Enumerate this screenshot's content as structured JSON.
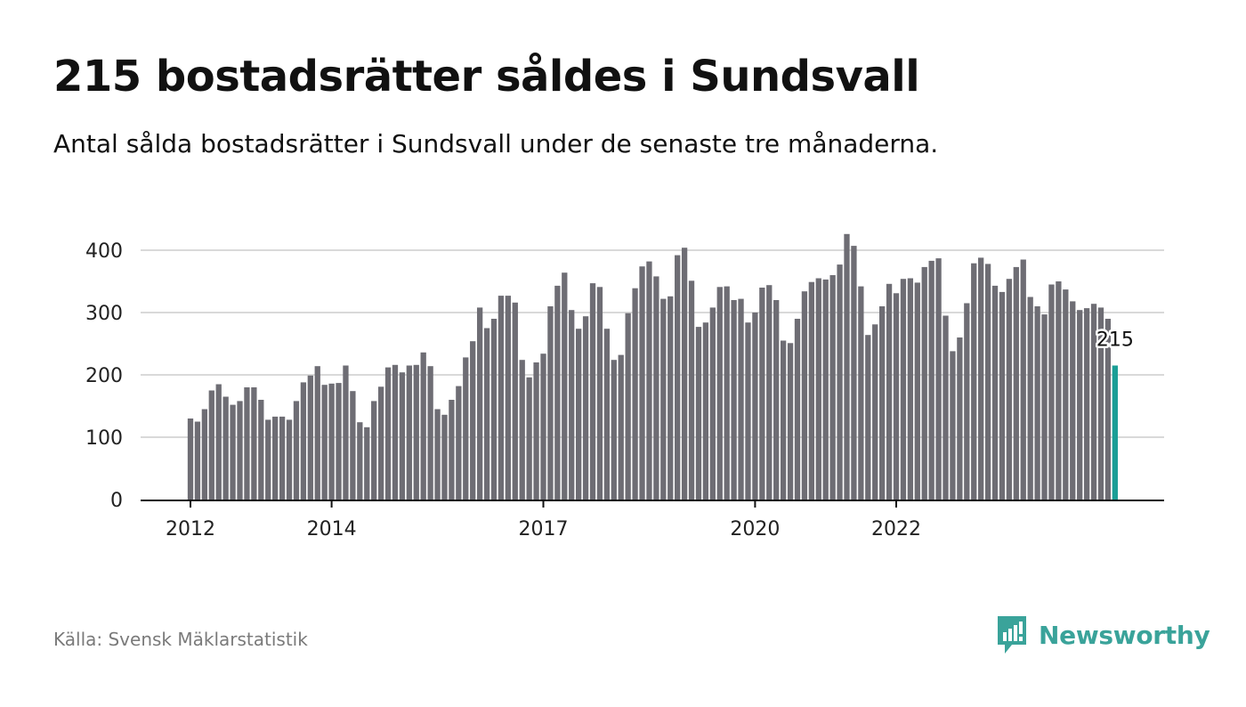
{
  "header": {
    "title": "215 bostadsrätter såldes i Sundsvall",
    "subtitle": "Antal sålda bostadsrätter i Sundsvall under de senaste tre månaderna."
  },
  "footer": {
    "source": "Källa: Svensk Mäklarstatistik",
    "brand": "Newsworthy"
  },
  "colors": {
    "bar": "#6e6d74",
    "highlight": "#1a9e96",
    "grid": "#d9d9d9",
    "axis": "#111111",
    "brand": "#3aa39a"
  },
  "chart_data": {
    "type": "bar",
    "start": "2012-01",
    "y_ticks": [
      0,
      100,
      200,
      300,
      400
    ],
    "x_ticks": [
      {
        "label": "2012",
        "index": 0
      },
      {
        "label": "2014",
        "index": 20
      },
      {
        "label": "2017",
        "index": 50
      },
      {
        "label": "2020",
        "index": 80
      },
      {
        "label": "2022",
        "index": 100
      }
    ],
    "ylim": [
      0,
      440
    ],
    "grid": true,
    "values": [
      130,
      125,
      145,
      175,
      185,
      165,
      152,
      158,
      180,
      180,
      160,
      128,
      133,
      133,
      128,
      158,
      188,
      199,
      214,
      184,
      186,
      187,
      215,
      174,
      124,
      116,
      158,
      181,
      212,
      216,
      204,
      215,
      216,
      236,
      214,
      145,
      136,
      160,
      182,
      228,
      254,
      308,
      275,
      290,
      327,
      327,
      316,
      224,
      196,
      220,
      234,
      310,
      343,
      364,
      304,
      274,
      294,
      347,
      341,
      274,
      224,
      232,
      299,
      339,
      374,
      382,
      358,
      322,
      326,
      392,
      404,
      351,
      277,
      284,
      308,
      341,
      342,
      320,
      322,
      284,
      300,
      340,
      344,
      320,
      255,
      251,
      290,
      334,
      349,
      355,
      353,
      360,
      377,
      426,
      407,
      342,
      264,
      281,
      310,
      346,
      331,
      354,
      355,
      348,
      373,
      383,
      387,
      295,
      238,
      260,
      315,
      379,
      388,
      378,
      343,
      333,
      354,
      373,
      385,
      325,
      310,
      297,
      345,
      350,
      337,
      318,
      304,
      307,
      314,
      308,
      290,
      215
    ],
    "highlight_index": 131,
    "highlight_label": "215"
  }
}
